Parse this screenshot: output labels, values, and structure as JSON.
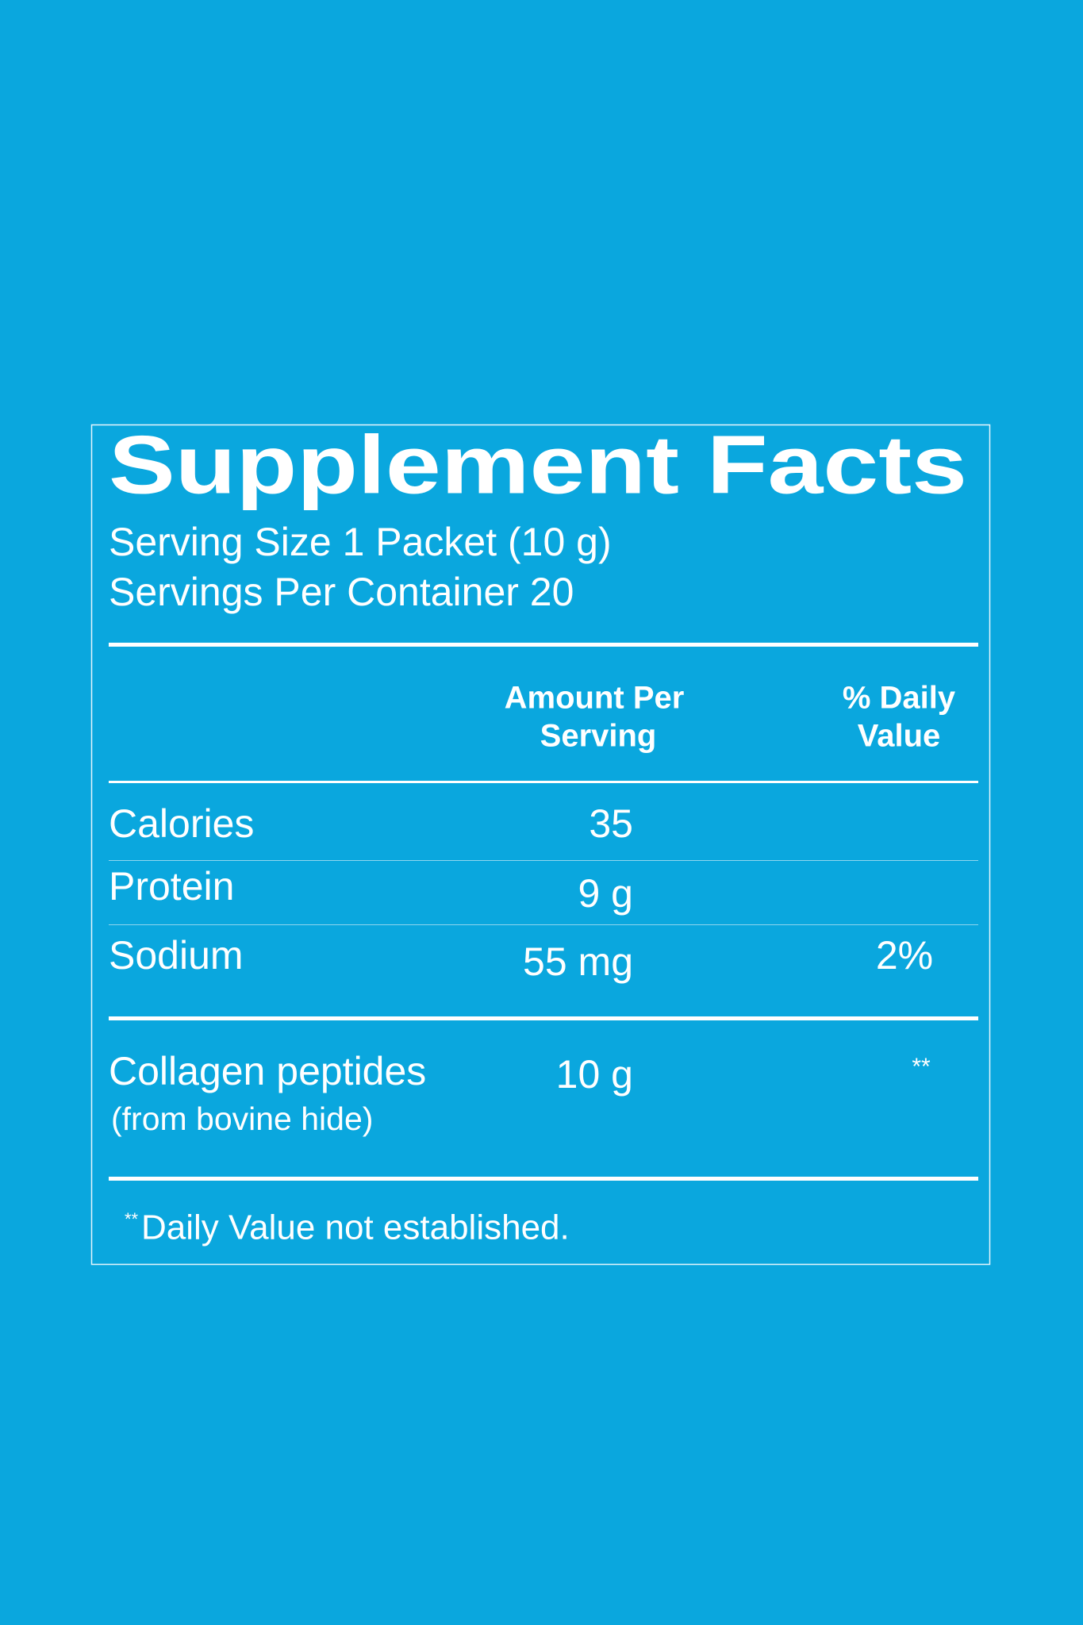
{
  "title": "Supplement Facts",
  "serving_size": "Serving Size 1 Packet (10 g)",
  "servings_per_container": "Servings Per Container 20",
  "header": {
    "amount": [
      "Amount Per",
      "Serving"
    ],
    "daily_value": [
      "% Daily",
      "Value"
    ]
  },
  "rows": [
    {
      "name": "Calories",
      "amount": "35"
    },
    {
      "name": "Protein",
      "amount": "9 g"
    },
    {
      "name": "Sodium",
      "amount": "55 mg",
      "daily_value": "2%"
    },
    {
      "name": "Collagen peptides",
      "note": "(from bovine hide)",
      "amount": "10 g",
      "daily_value": "**"
    }
  ],
  "footnote": {
    "mark": "**",
    "text": "Daily Value not established."
  }
}
